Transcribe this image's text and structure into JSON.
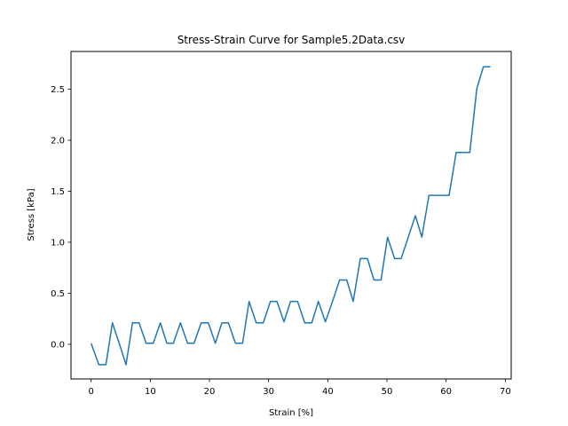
{
  "chart_data": {
    "type": "line",
    "title": "Stress-Strain Curve for Sample5.2Data.csv",
    "xlabel": "Strain [%]",
    "ylabel": "Stress [kPa]",
    "xlim": [
      -3.4,
      71.0
    ],
    "ylim": [
      -0.34,
      2.87
    ],
    "xticks": [
      0,
      10,
      20,
      30,
      40,
      50,
      60,
      70
    ],
    "xtick_labels": [
      "0",
      "10",
      "20",
      "30",
      "40",
      "50",
      "60",
      "70"
    ],
    "yticks": [
      0.0,
      0.5,
      1.0,
      1.5,
      2.0,
      2.5
    ],
    "ytick_labels": [
      "0.0",
      "0.5",
      "1.0",
      "1.5",
      "2.0",
      "2.5"
    ],
    "grid": false,
    "series": [
      {
        "color": "#1f77b4",
        "x": [
          0,
          1.3,
          2.5,
          3.6,
          4.8,
          5.9,
          7.0,
          8.1,
          9.3,
          10.5,
          11.7,
          12.8,
          13.9,
          15.1,
          16.3,
          17.4,
          18.6,
          19.8,
          21.0,
          22.1,
          23.2,
          24.4,
          25.6,
          26.7,
          27.9,
          29.1,
          30.3,
          31.4,
          32.6,
          33.7,
          34.9,
          36.1,
          37.3,
          38.4,
          39.6,
          40.8,
          42.0,
          43.2,
          44.3,
          45.5,
          46.7,
          47.8,
          49.0,
          50.1,
          51.3,
          52.4,
          53.6,
          54.8,
          55.9,
          57.1,
          58.2,
          59.4,
          60.5,
          61.7,
          62.8,
          64.0,
          65.2,
          66.3,
          67.5
        ],
        "y": [
          0.01,
          -0.2,
          -0.2,
          0.21,
          0.0,
          -0.2,
          0.21,
          0.21,
          0.01,
          0.01,
          0.21,
          0.01,
          0.01,
          0.21,
          0.01,
          0.01,
          0.21,
          0.21,
          0.01,
          0.21,
          0.21,
          0.01,
          0.01,
          0.42,
          0.21,
          0.21,
          0.42,
          0.42,
          0.22,
          0.42,
          0.42,
          0.21,
          0.21,
          0.42,
          0.22,
          0.42,
          0.63,
          0.63,
          0.42,
          0.84,
          0.84,
          0.63,
          0.63,
          1.05,
          0.84,
          0.84,
          1.05,
          1.26,
          1.05,
          1.46,
          1.46,
          1.46,
          1.46,
          1.88,
          1.88,
          1.88,
          2.51,
          2.72,
          2.72
        ]
      }
    ]
  }
}
